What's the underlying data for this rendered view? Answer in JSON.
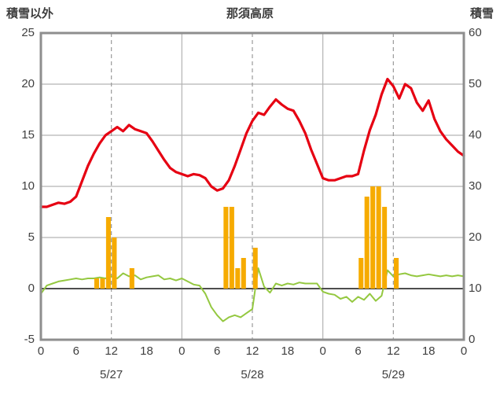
{
  "chart_data": {
    "type": "line+bar",
    "title": "那須高原",
    "left_axis": {
      "label": "積雪以外",
      "min": -5,
      "max": 25,
      "ticks": [
        25,
        20,
        15,
        10,
        5,
        0,
        -5
      ]
    },
    "right_axis": {
      "label": "積雪",
      "min": 0,
      "max": 60,
      "ticks": [
        60,
        50,
        40,
        30,
        20,
        10,
        0
      ]
    },
    "x_range": [
      0,
      72
    ],
    "x_axis": {
      "tick_hours": [
        0,
        6,
        12,
        18,
        24,
        30,
        36,
        42,
        48,
        54,
        60,
        66,
        72
      ],
      "tick_labels": [
        "0",
        "6",
        "12",
        "18",
        "0",
        "6",
        "12",
        "18",
        "0",
        "6",
        "12",
        "18",
        "0"
      ],
      "dates": [
        {
          "label": "5/27",
          "center_hour": 12
        },
        {
          "label": "5/28",
          "center_hour": 36
        },
        {
          "label": "5/29",
          "center_hour": 60
        }
      ]
    },
    "grid": {
      "h_lines": [
        20,
        15,
        10,
        5
      ],
      "zero_line": 0,
      "v_solid": [
        24,
        48
      ],
      "v_dashed": [
        12,
        36,
        60
      ]
    },
    "series": [
      {
        "name": "red-line",
        "kind": "line",
        "axis": "left",
        "color": "#e60012",
        "values": [
          8.0,
          8.0,
          8.2,
          8.4,
          8.3,
          8.5,
          9.0,
          10.5,
          12.0,
          13.2,
          14.2,
          15.0,
          15.4,
          15.8,
          15.4,
          16.0,
          15.6,
          15.4,
          15.2,
          14.4,
          13.5,
          12.6,
          11.8,
          11.4,
          11.2,
          11.0,
          11.2,
          11.1,
          10.8,
          10.0,
          9.6,
          9.8,
          10.6,
          12.0,
          13.6,
          15.2,
          16.4,
          17.2,
          17.0,
          17.8,
          18.5,
          18.0,
          17.6,
          17.4,
          16.4,
          15.2,
          13.6,
          12.2,
          10.8,
          10.6,
          10.6,
          10.8,
          11.0,
          11.0,
          11.2,
          13.5,
          15.5,
          17.0,
          19.0,
          20.5,
          19.8,
          18.6,
          20.0,
          19.6,
          18.2,
          17.4,
          18.4,
          16.6,
          15.4,
          14.6,
          14.0,
          13.4,
          13.0
        ]
      },
      {
        "name": "green-line",
        "kind": "line",
        "axis": "left",
        "color": "#94c840",
        "values": [
          -0.5,
          0.3,
          0.5,
          0.7,
          0.8,
          0.9,
          1.0,
          0.9,
          1.0,
          1.0,
          1.1,
          1.0,
          1.2,
          1.0,
          1.5,
          1.2,
          1.3,
          0.9,
          1.1,
          1.2,
          1.3,
          0.9,
          1.0,
          0.8,
          1.0,
          0.7,
          0.4,
          0.3,
          -0.5,
          -1.8,
          -2.6,
          -3.2,
          -2.8,
          -2.6,
          -2.8,
          -2.4,
          -2.0,
          2.0,
          0.2,
          -0.4,
          0.5,
          0.3,
          0.5,
          0.4,
          0.6,
          0.5,
          0.5,
          0.5,
          -0.3,
          -0.5,
          -0.6,
          -1.0,
          -0.8,
          -1.3,
          -0.8,
          -1.1,
          -0.5,
          -1.2,
          -0.7,
          1.8,
          1.2,
          1.4,
          1.5,
          1.3,
          1.2,
          1.3,
          1.4,
          1.3,
          1.2,
          1.3,
          1.2,
          1.3,
          1.2
        ]
      },
      {
        "name": "orange-bars",
        "kind": "bar",
        "axis": "left",
        "color": "#f6ab00",
        "bars": [
          {
            "hour": 9,
            "value": 1.0
          },
          {
            "hour": 10,
            "value": 1.0
          },
          {
            "hour": 11,
            "value": 7.0
          },
          {
            "hour": 12,
            "value": 5.0
          },
          {
            "hour": 15,
            "value": 2.0
          },
          {
            "hour": 31,
            "value": 8.0
          },
          {
            "hour": 32,
            "value": 8.0
          },
          {
            "hour": 33,
            "value": 2.0
          },
          {
            "hour": 34,
            "value": 3.0
          },
          {
            "hour": 36,
            "value": 4.0
          },
          {
            "hour": 54,
            "value": 3.0
          },
          {
            "hour": 55,
            "value": 9.0
          },
          {
            "hour": 56,
            "value": 10.0
          },
          {
            "hour": 57,
            "value": 10.0
          },
          {
            "hour": 58,
            "value": 8.0
          },
          {
            "hour": 60,
            "value": 3.0
          }
        ]
      }
    ],
    "colors": {
      "grid": "#b3b3b3",
      "border": "#8e8e8e",
      "zero": "#4d4d4d",
      "text": "#404040"
    },
    "legend": "none"
  }
}
